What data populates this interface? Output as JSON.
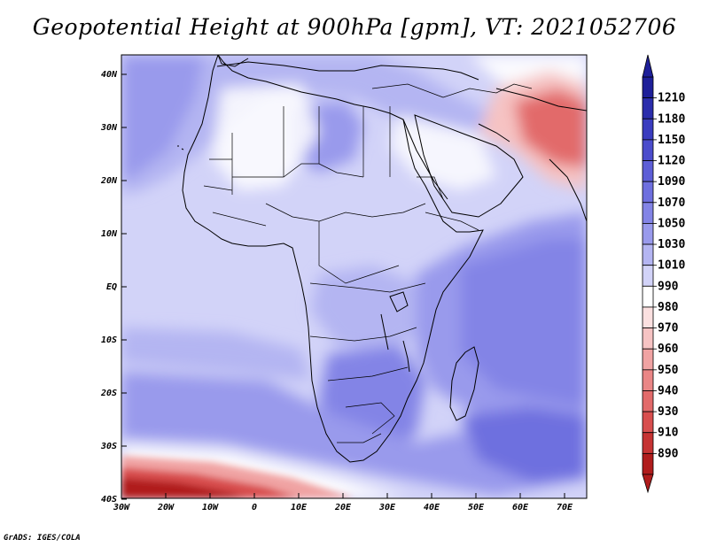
{
  "title": "Geopotential Height at 900hPa [gpm], VT: 2021052706",
  "credit": "GrADS: IGES/COLA",
  "map": {
    "lat_labels": [
      "40N",
      "30N",
      "20N",
      "10N",
      "EQ",
      "10S",
      "20S",
      "30S",
      "40S"
    ],
    "lon_labels": [
      "30W",
      "20W",
      "10W",
      "0",
      "10E",
      "20E",
      "30E",
      "40E",
      "50E",
      "60E",
      "70E"
    ]
  },
  "colorbar": {
    "levels": [
      "1210",
      "1180",
      "1150",
      "1120",
      "1090",
      "1070",
      "1050",
      "1030",
      "1010",
      "990",
      "980",
      "970",
      "960",
      "950",
      "940",
      "930",
      "910",
      "890"
    ],
    "colors": [
      "#1e1f99",
      "#2b2dac",
      "#3a3cbf",
      "#4b4ccc",
      "#5d5ed7",
      "#6e6fdf",
      "#8384e6",
      "#999aec",
      "#b4b5f2",
      "#d2d3f8",
      "#ffffff",
      "#fbe0e0",
      "#f6c3c3",
      "#f0a3a3",
      "#ea8686",
      "#e26a6a",
      "#d84e4e",
      "#c63333",
      "#b01c1c"
    ]
  },
  "legend_map_colors": {
    "background": "#d2d3f8",
    "mid": "#b4b5f2",
    "deep": "#999aec",
    "deeper": "#8384e6",
    "white": "#ffffff",
    "pink": "#f6c3c3",
    "red": "#e26a6a",
    "darkred": "#b01c1c"
  }
}
